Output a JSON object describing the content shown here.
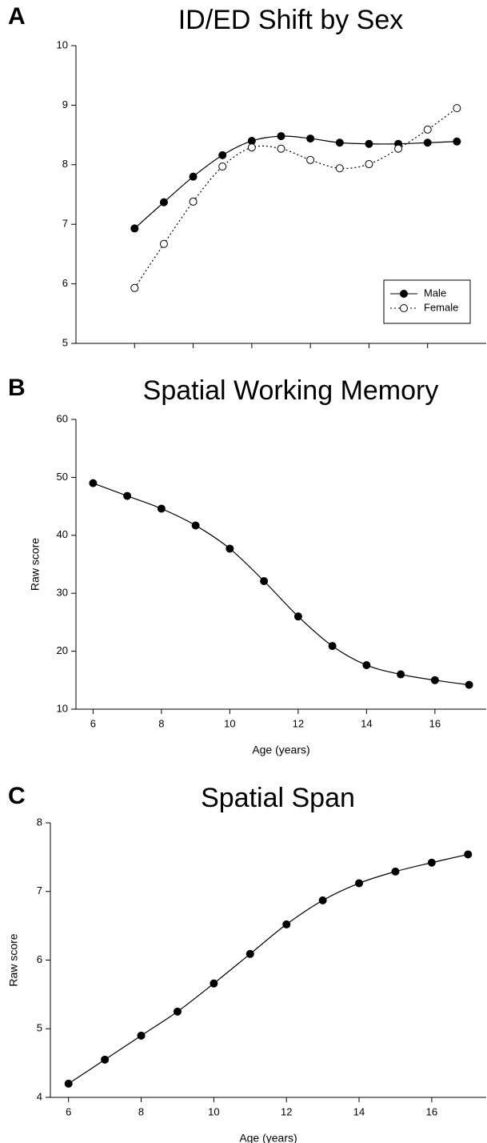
{
  "chart_data": [
    {
      "type": "line",
      "label": "A",
      "title": "ID/ED Shift by Sex",
      "x": [
        6,
        7,
        8,
        9,
        10,
        11,
        12,
        13,
        14,
        15,
        16,
        17
      ],
      "xlim": [
        4,
        18
      ],
      "xticks": [
        6,
        8,
        10,
        12,
        14,
        16
      ],
      "ylim": [
        5,
        10
      ],
      "yticks": [
        5,
        6,
        7,
        8,
        9,
        10
      ],
      "legend": "lower right",
      "series": [
        {
          "name": "Male",
          "color": "#000000",
          "marker": "filled",
          "linestyle": "solid",
          "values": [
            6.93,
            7.37,
            7.8,
            8.16,
            8.4,
            8.48,
            8.44,
            8.37,
            8.35,
            8.35,
            8.37,
            8.39
          ]
        },
        {
          "name": "Female",
          "color": "#000000",
          "marker": "open",
          "linestyle": "dotted",
          "values": [
            5.93,
            6.67,
            7.38,
            7.97,
            8.29,
            8.27,
            8.08,
            7.94,
            8.01,
            8.27,
            8.59,
            8.95
          ]
        }
      ]
    },
    {
      "type": "line",
      "label": "B",
      "title": "Spatial Working Memory",
      "xlabel": "Age (years)",
      "ylabel": "Raw score",
      "x": [
        6,
        7,
        8,
        9,
        10,
        11,
        12,
        13,
        14,
        15,
        16,
        17
      ],
      "xlim": [
        5.5,
        17.5
      ],
      "xticks": [
        6,
        8,
        10,
        12,
        14,
        16
      ],
      "ylim": [
        10,
        60
      ],
      "yticks": [
        10,
        20,
        30,
        40,
        50,
        60
      ],
      "series": [
        {
          "color": "#000000",
          "marker": "filled",
          "linestyle": "solid",
          "values": [
            49,
            46.8,
            44.6,
            41.7,
            37.7,
            32.1,
            26,
            20.9,
            17.6,
            16,
            15,
            14.2
          ]
        }
      ]
    },
    {
      "type": "line",
      "label": "C",
      "title": "Spatial Span",
      "xlabel": "Age (years)",
      "ylabel": "Raw score",
      "x": [
        6,
        7,
        8,
        9,
        10,
        11,
        12,
        13,
        14,
        15,
        16,
        17
      ],
      "xlim": [
        5.5,
        17.5
      ],
      "xticks": [
        6,
        8,
        10,
        12,
        14,
        16
      ],
      "ylim": [
        4,
        8
      ],
      "yticks": [
        4,
        5,
        6,
        7,
        8
      ],
      "series": [
        {
          "color": "#000000",
          "marker": "filled",
          "linestyle": "solid",
          "values": [
            4.2,
            4.55,
            4.9,
            5.25,
            5.66,
            6.09,
            6.52,
            6.87,
            7.12,
            7.29,
            7.42,
            7.54
          ]
        }
      ]
    }
  ]
}
